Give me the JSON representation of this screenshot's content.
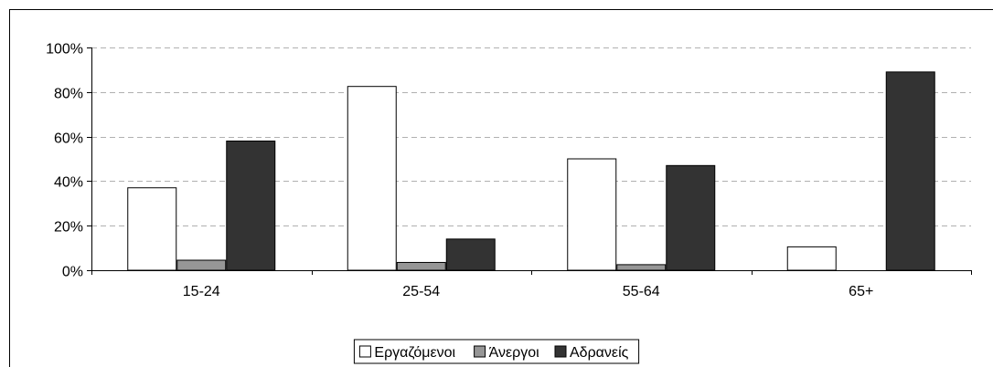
{
  "chart_data": {
    "type": "bar",
    "title": "",
    "categories": [
      "15-24",
      "25-54",
      "55-64",
      "65+"
    ],
    "series": [
      {
        "name": "Εργαζόμενοι",
        "values": [
          37,
          82.5,
          50,
          10.5
        ],
        "color": "#ffffff"
      },
      {
        "name": "Άνεργοι",
        "values": [
          4.5,
          3.5,
          2.5,
          0
        ],
        "color": "#969696"
      },
      {
        "name": "Αδρανείς",
        "values": [
          58,
          14,
          47,
          89
        ],
        "color": "#333333"
      }
    ],
    "ylim": [
      0,
      100
    ],
    "yticks": [
      "0%",
      "20%",
      "40%",
      "60%",
      "80%",
      "100%"
    ],
    "xlabel": "",
    "ylabel": "",
    "grid": true,
    "legend": "bottom-center"
  }
}
